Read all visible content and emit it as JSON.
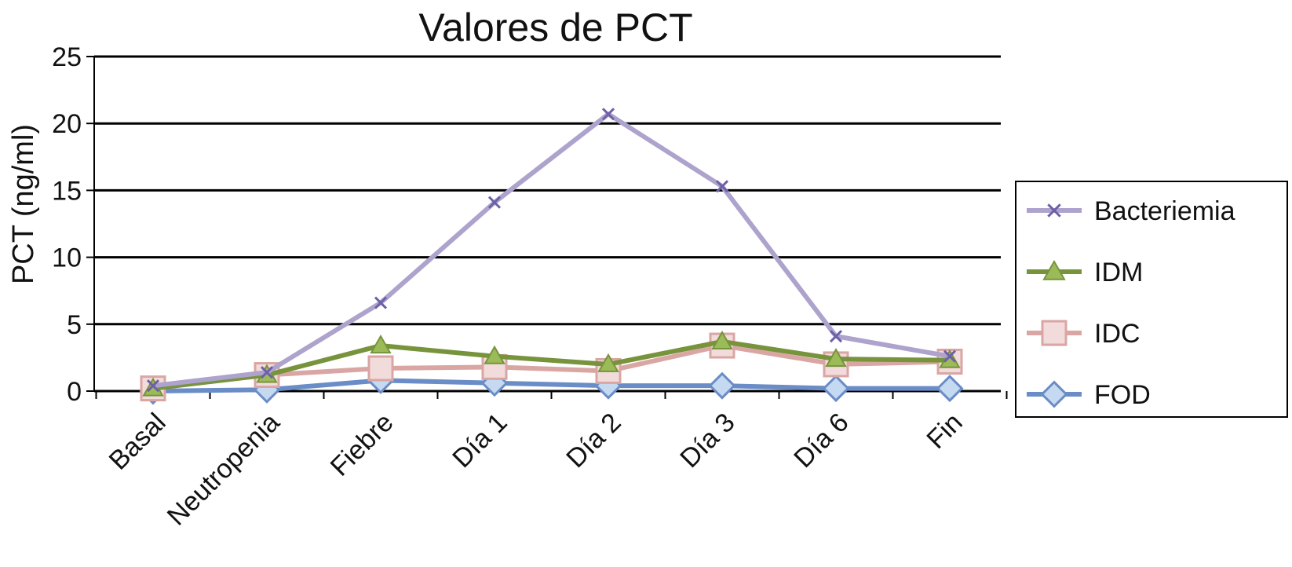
{
  "chart_data": {
    "type": "line",
    "title": "Valores de PCT",
    "xlabel": "",
    "ylabel": "PCT (ng/ml)",
    "ylim": [
      0,
      25
    ],
    "yticks": [
      "0",
      "5",
      "10",
      "15",
      "20",
      "25"
    ],
    "grid": true,
    "legend_position": "right",
    "categories": [
      "Basal",
      "Neutropenia",
      "Fiebre",
      "Día 1",
      "Día 2",
      "Día 3",
      "Día 6",
      "Fin"
    ],
    "series": [
      {
        "name": "Bacteriemia",
        "marker": "x",
        "color": "#ADA3CC",
        "marker_color": "#6E60A8",
        "values": [
          0.4,
          1.4,
          6.6,
          14.1,
          20.7,
          15.3,
          4.1,
          2.6
        ]
      },
      {
        "name": "IDM",
        "marker": "triangle",
        "color": "#77933C",
        "marker_color": "#9BBB59",
        "values": [
          0.2,
          1.2,
          3.4,
          2.6,
          2.0,
          3.7,
          2.4,
          2.3
        ]
      },
      {
        "name": "IDC",
        "marker": "square",
        "color": "#D9A6A4",
        "marker_color": "#F2DCDB",
        "values": [
          0.2,
          1.2,
          1.7,
          1.8,
          1.5,
          3.4,
          2.0,
          2.2
        ]
      },
      {
        "name": "FOD",
        "marker": "diamond",
        "color": "#6A8CC7",
        "marker_color": "#C5D9F1",
        "values": [
          0.0,
          0.1,
          0.8,
          0.6,
          0.4,
          0.4,
          0.2,
          0.2
        ]
      }
    ]
  }
}
